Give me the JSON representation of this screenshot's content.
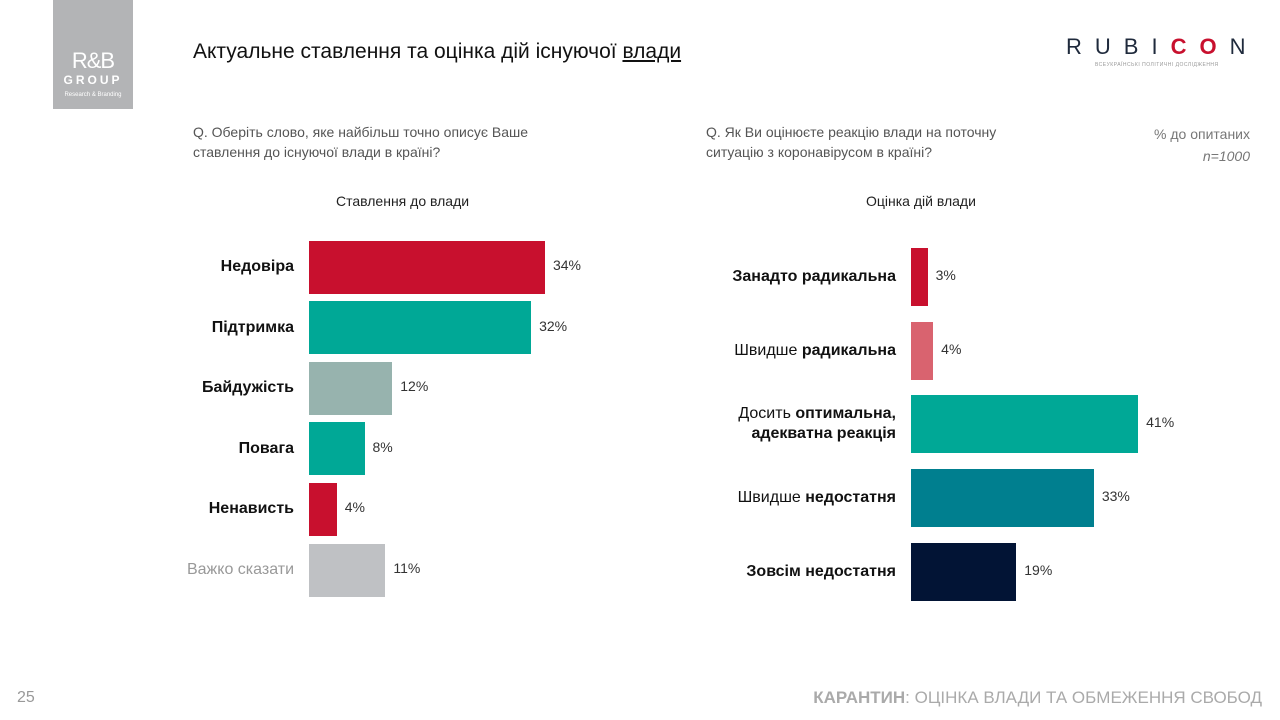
{
  "logo": {
    "rb": "R&B",
    "group": "GROUP",
    "tagline": "Research & Branding"
  },
  "title": {
    "main": "Актуальне ставлення та оцінка дій існуючої ",
    "underlined": "влади"
  },
  "rubicon": {
    "pre": "RUBI",
    "accent": "CO",
    "post": "N",
    "tagline": "ВСЕУКРАЇНСЬКІ ПОЛІТИЧНІ ДОСЛІДЖЕННЯ"
  },
  "meta": {
    "unit": "% до опитаних",
    "n": "n=1000"
  },
  "colors": {
    "red": "#c8102e",
    "teal": "#00a896",
    "greygreen": "#97b3ae",
    "grey": "#bfc1c4",
    "pink": "#d9636f",
    "darkteal": "#007f8f",
    "navy": "#021435"
  },
  "chart_data": [
    {
      "type": "bar",
      "orientation": "horizontal",
      "question": "Q. Оберіть слово, яке найбільш точно описує Ваше ставлення до існуючої влади в країні?",
      "title": "Ставлення до влади",
      "categories": [
        "Недовіра",
        "Підтримка",
        "Байдужість",
        "Повага",
        "Ненависть",
        "Важко сказати"
      ],
      "values": [
        34,
        32,
        12,
        8,
        4,
        11
      ],
      "colors": [
        "#c8102e",
        "#00a896",
        "#97b3ae",
        "#00a896",
        "#c8102e",
        "#bfc1c4"
      ]
    },
    {
      "type": "bar",
      "orientation": "horizontal",
      "question": "Q. Як Ви оцінюєте реакцію влади на поточну ситуацію з коронавірусом в країні?",
      "title": "Оцінка дій влади",
      "categories": [
        "Занадто радикальна",
        "Швидше радикальна",
        "Досить оптимальна, адекватна реакція",
        "Швидше недостатня",
        "Зовсім недостатня"
      ],
      "values": [
        3,
        4,
        41,
        33,
        19
      ],
      "colors": [
        "#c8102e",
        "#d9636f",
        "#00a896",
        "#007f8f",
        "#021435"
      ]
    }
  ],
  "label_parts": [
    [
      [
        [
          "Недовіра",
          true
        ]
      ],
      [
        [
          "Підтримка",
          true
        ]
      ],
      [
        [
          "Байдужість",
          true
        ]
      ],
      [
        [
          "Повага",
          true
        ]
      ],
      [
        [
          "Ненависть",
          true
        ]
      ],
      [
        [
          "Важко сказати",
          false
        ]
      ]
    ],
    [
      [
        [
          "Занадто радикальна",
          true
        ]
      ],
      [
        [
          "Швидше ",
          false
        ],
        [
          "радикальна",
          true
        ]
      ],
      [
        [
          "Досить ",
          false
        ],
        [
          "оптимальна,",
          true
        ],
        [
          "\n",
          false
        ],
        [
          "адекватна реакція",
          true
        ]
      ],
      [
        [
          "Швидше ",
          false
        ],
        [
          "недостатня",
          true
        ]
      ],
      [
        [
          "Зовсім недостатня",
          true
        ]
      ]
    ]
  ],
  "footer": {
    "page": "25",
    "bold": "КАРАНТИН",
    "rest": ": ОЦІНКА ВЛАДИ ТА ОБМЕЖЕННЯ СВОБОД"
  }
}
